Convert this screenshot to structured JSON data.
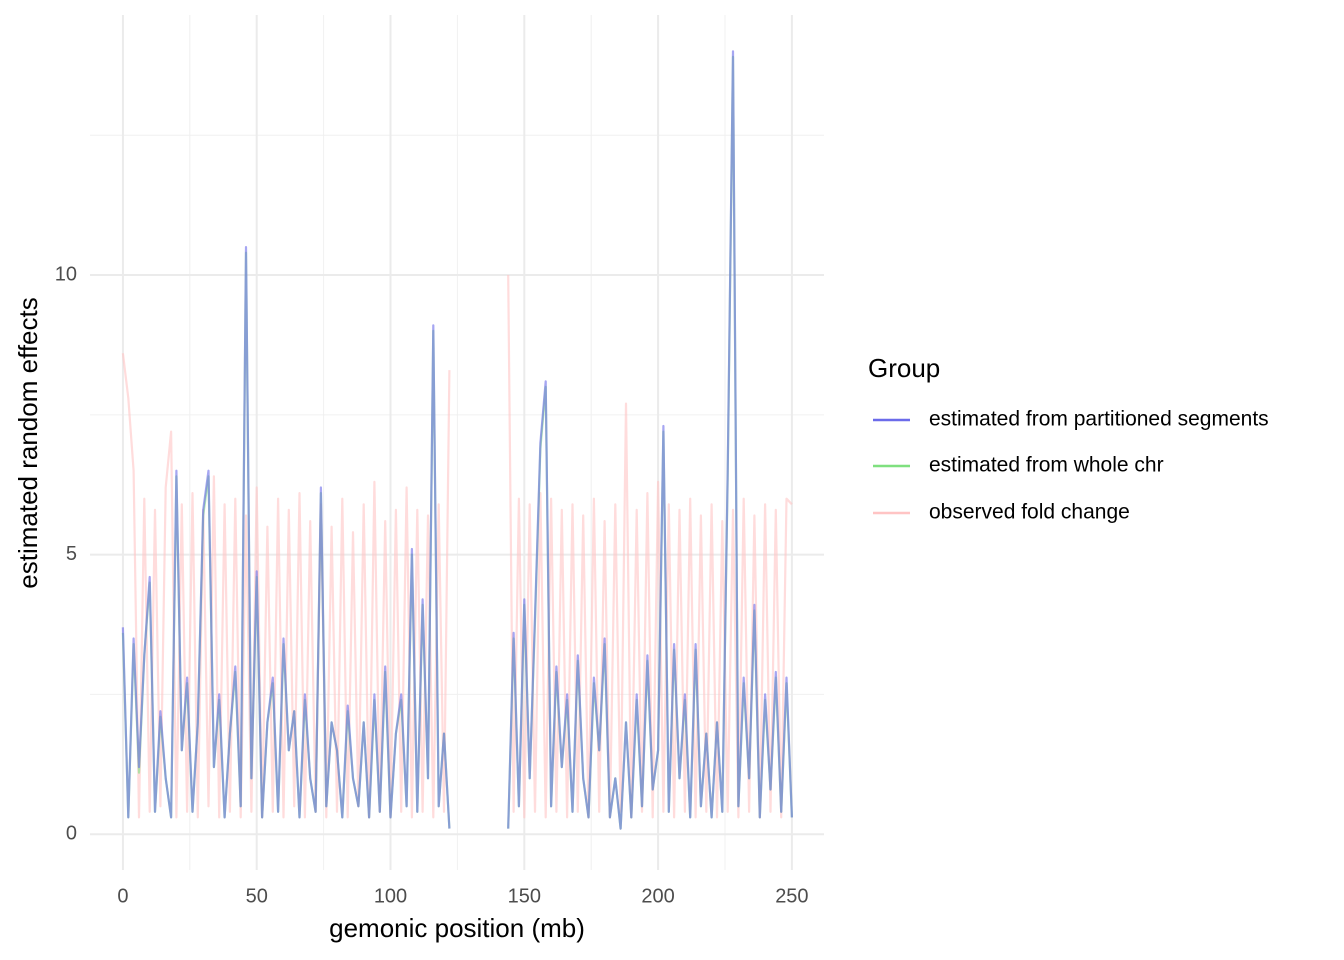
{
  "chart_data": {
    "type": "line",
    "x_label": "gemonic position (mb)",
    "y_label": "estimated random effects",
    "legend_title": "Group",
    "xlim": [
      -12.3,
      262
    ],
    "ylim": [
      -0.64,
      14.65
    ],
    "xticks": [
      0,
      50,
      100,
      150,
      200,
      250
    ],
    "yticks": [
      0,
      5,
      10
    ],
    "grid": true,
    "legend": "right",
    "x": [
      0,
      2,
      4,
      6,
      8,
      10,
      12,
      14,
      16,
      18,
      20,
      22,
      24,
      26,
      28,
      30,
      32,
      34,
      36,
      38,
      40,
      42,
      44,
      46,
      48,
      50,
      52,
      54,
      56,
      58,
      60,
      62,
      64,
      66,
      68,
      70,
      72,
      74,
      76,
      78,
      80,
      82,
      84,
      86,
      88,
      90,
      92,
      94,
      96,
      98,
      100,
      102,
      104,
      106,
      108,
      110,
      112,
      114,
      116,
      118,
      120,
      122,
      132,
      144,
      146,
      148,
      150,
      152,
      154,
      156,
      158,
      160,
      162,
      164,
      166,
      168,
      170,
      172,
      174,
      176,
      178,
      180,
      182,
      184,
      186,
      188,
      190,
      192,
      194,
      196,
      198,
      200,
      202,
      204,
      206,
      208,
      210,
      212,
      214,
      216,
      218,
      220,
      222,
      224,
      226,
      228,
      230,
      232,
      234,
      236,
      238,
      240,
      242,
      244,
      246,
      248,
      250
    ],
    "series": [
      {
        "name": "estimated from partitioned segments",
        "color": "#6b6bea",
        "values": [
          3.7,
          0.3,
          3.5,
          1.2,
          3.2,
          4.6,
          0.4,
          2.2,
          1.0,
          0.3,
          6.5,
          1.5,
          2.8,
          0.4,
          2.0,
          5.8,
          6.5,
          1.2,
          2.5,
          0.3,
          1.8,
          3.0,
          0.5,
          10.5,
          1.0,
          4.7,
          0.3,
          2.0,
          2.8,
          0.4,
          3.5,
          1.5,
          2.2,
          0.3,
          2.5,
          1.0,
          0.4,
          6.2,
          0.5,
          2.0,
          1.5,
          0.3,
          2.3,
          1.0,
          0.5,
          2.0,
          0.3,
          2.5,
          0.4,
          3.0,
          0.3,
          1.8,
          2.5,
          0.5,
          5.1,
          0.4,
          4.2,
          1.0,
          9.1,
          0.5,
          1.8,
          0.1,
          null,
          0.1,
          3.6,
          0.5,
          4.2,
          1.0,
          3.9,
          7.0,
          8.1,
          0.5,
          3.0,
          1.2,
          2.5,
          0.4,
          3.2,
          1.0,
          0.3,
          2.8,
          1.5,
          3.5,
          0.3,
          1.0,
          0.1,
          2.0,
          0.3,
          2.5,
          0.5,
          3.2,
          0.8,
          1.5,
          7.3,
          0.4,
          3.4,
          1.0,
          2.5,
          0.3,
          3.4,
          0.5,
          1.8,
          0.3,
          2.0,
          0.4,
          6.5,
          14.0,
          0.5,
          2.8,
          1.0,
          4.1,
          0.3,
          2.5,
          0.8,
          2.9,
          0.4,
          2.8,
          0.3
        ]
      },
      {
        "name": "estimated from whole chr",
        "color": "#7fe07f",
        "values": [
          3.6,
          0.3,
          3.4,
          1.1,
          3.2,
          4.5,
          0.4,
          2.1,
          1.0,
          0.3,
          6.4,
          1.5,
          2.7,
          0.4,
          2.0,
          5.7,
          6.4,
          1.2,
          2.4,
          0.3,
          1.8,
          2.9,
          0.5,
          10.4,
          1.0,
          4.6,
          0.3,
          2.0,
          2.7,
          0.4,
          3.4,
          1.5,
          2.2,
          0.3,
          2.4,
          1.0,
          0.4,
          6.1,
          0.5,
          2.0,
          1.5,
          0.3,
          2.2,
          1.0,
          0.5,
          2.0,
          0.3,
          2.4,
          0.4,
          2.9,
          0.3,
          1.8,
          2.4,
          0.5,
          5.0,
          0.4,
          4.1,
          1.0,
          9.0,
          0.5,
          1.8,
          0.1,
          null,
          0.1,
          3.5,
          0.5,
          4.1,
          1.0,
          3.8,
          6.9,
          8.0,
          0.5,
          2.9,
          1.2,
          2.4,
          0.4,
          3.1,
          1.0,
          0.3,
          2.7,
          1.5,
          3.4,
          0.3,
          1.0,
          0.1,
          2.0,
          0.3,
          2.4,
          0.5,
          3.1,
          0.8,
          1.5,
          7.2,
          0.4,
          3.3,
          1.0,
          2.4,
          0.3,
          3.3,
          0.5,
          1.8,
          0.3,
          2.0,
          0.4,
          6.4,
          13.9,
          0.5,
          2.7,
          1.0,
          4.0,
          0.3,
          2.4,
          0.8,
          2.8,
          0.4,
          2.7,
          0.3
        ]
      },
      {
        "name": "observed fold change",
        "color": "#ffc4c4",
        "values": [
          8.6,
          7.8,
          6.5,
          0.3,
          6.0,
          0.4,
          5.8,
          0.5,
          6.2,
          7.2,
          0.3,
          5.9,
          0.4,
          6.1,
          0.3,
          5.8,
          0.5,
          6.4,
          0.3,
          5.9,
          0.4,
          6.0,
          0.3,
          5.7,
          0.4,
          6.2,
          0.3,
          5.5,
          0.4,
          6.0,
          0.3,
          5.8,
          0.5,
          6.1,
          0.3,
          5.6,
          0.4,
          5.9,
          0.3,
          5.5,
          0.4,
          6.0,
          0.3,
          5.4,
          0.5,
          5.9,
          0.3,
          6.3,
          0.4,
          5.6,
          0.3,
          5.8,
          0.4,
          6.2,
          0.3,
          5.8,
          0.4,
          5.7,
          0.3,
          5.9,
          0.4,
          8.3,
          null,
          10.0,
          0.4,
          6.0,
          0.3,
          5.9,
          0.4,
          6.1,
          0.3,
          6.0,
          0.4,
          5.8,
          0.3,
          5.9,
          0.4,
          5.7,
          0.3,
          6.0,
          0.4,
          5.6,
          0.3,
          5.9,
          0.4,
          7.7,
          0.3,
          5.8,
          0.4,
          6.1,
          0.3,
          6.3,
          0.4,
          5.9,
          0.3,
          5.8,
          0.4,
          6.0,
          0.3,
          5.7,
          0.4,
          5.9,
          0.3,
          5.6,
          0.4,
          5.8,
          0.3,
          6.0,
          0.4,
          5.7,
          0.3,
          5.9,
          0.4,
          5.8,
          0.3,
          6.0,
          5.9
        ]
      }
    ]
  }
}
